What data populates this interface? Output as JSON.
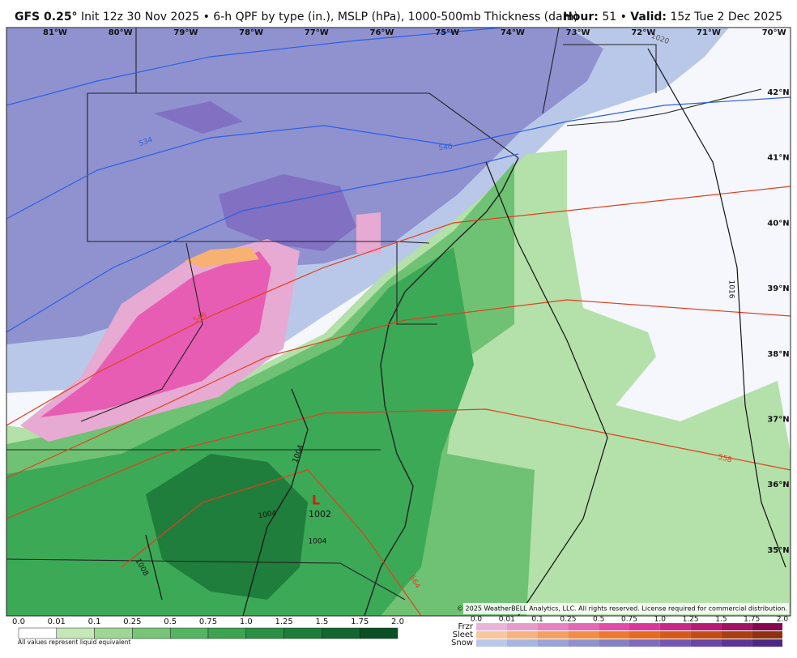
{
  "header": {
    "model": "GFS 0.25°",
    "init": "Init 12z 30 Nov 2025 • 6-h QPF by type (in.), MSLP (hPa), 1000-500mb Thickness (dam)",
    "hour_label": "Hour:",
    "hour": "51 •",
    "valid_label": "Valid:",
    "valid": "15z Tue 2 Dec 2025"
  },
  "map": {
    "longitudes": [
      "81°W",
      "80°W",
      "79°W",
      "78°W",
      "77°W",
      "76°W",
      "75°W",
      "74°W",
      "73°W",
      "72°W",
      "71°W",
      "70°W"
    ],
    "latitudes": [
      "42°N",
      "41°N",
      "40°N",
      "39°N",
      "38°N",
      "37°N",
      "36°N",
      "35°N"
    ],
    "contour_labels": [
      "1020",
      "534",
      "540",
      "546",
      "558",
      "564",
      "1016",
      "1004",
      "1008",
      "1004",
      "1004"
    ],
    "low_marker": "L",
    "low_pressure": "1002",
    "copyright": "© 2025 WeatherBELL Analytics, LLC. All rights reserved. License required for commercial distribution."
  },
  "legend": {
    "rain_scale": [
      "0.0",
      "0.01",
      "0.1",
      "0.25",
      "0.5",
      "0.75",
      "1.0",
      "1.25",
      "1.5",
      "1.75",
      "2.0"
    ],
    "note": "All values represent liquid equivalent",
    "types": [
      "Frzr",
      "Sleet",
      "Snow"
    ],
    "mixed_scale": [
      "0.0",
      "0.01",
      "0.1",
      "0.25",
      "0.5",
      "0.75",
      "1.0",
      "1.25",
      "1.5",
      "1.75",
      "2.0"
    ]
  }
}
